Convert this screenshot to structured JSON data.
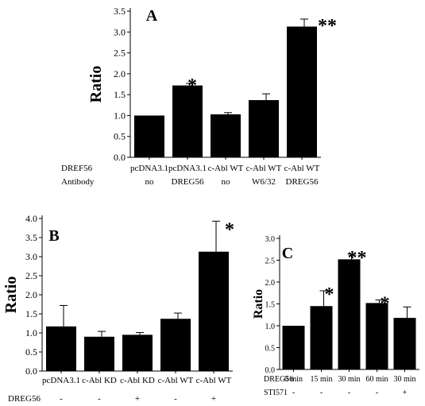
{
  "chart_data": [
    {
      "type": "bar",
      "title": "A",
      "ylabel": "Ratio",
      "ylim": [
        0,
        3.5
      ],
      "yticks": [
        "0.0",
        "0.5",
        "1.0",
        "1.5",
        "2.0",
        "2.5",
        "3.0",
        "3.5"
      ],
      "row_labels": [
        "DREF56",
        "Antibody"
      ],
      "categories": [
        [
          "pcDNA3.1",
          "no"
        ],
        [
          "pcDNA3.1",
          "DREG56"
        ],
        [
          "c-Abl WT",
          "no"
        ],
        [
          "c-Abl WT",
          "W6/32"
        ],
        [
          "c-Abl WT",
          "DREG56"
        ]
      ],
      "values": [
        1.0,
        1.72,
        1.03,
        1.37,
        3.13
      ],
      "errors": [
        0.0,
        0.05,
        0.04,
        0.15,
        0.18
      ],
      "annotations": [
        "",
        "*",
        "",
        "",
        "**"
      ]
    },
    {
      "type": "bar",
      "title": "B",
      "ylabel": "Ratio",
      "ylim": [
        0,
        4.0
      ],
      "yticks": [
        "0.0",
        "0.5",
        "1.0",
        "1.5",
        "2.0",
        "2.5",
        "3.0",
        "3.5",
        "4.0"
      ],
      "row_labels": [
        "DREG56"
      ],
      "categories": [
        [
          "pcDNA3.1",
          "-"
        ],
        [
          "c-Abl KD",
          "-"
        ],
        [
          "c-Abl KD",
          "+"
        ],
        [
          "c-Abl WT",
          "-"
        ],
        [
          "c-Abl WT",
          "+"
        ]
      ],
      "values": [
        1.17,
        0.9,
        0.95,
        1.37,
        3.13
      ],
      "errors": [
        0.55,
        0.14,
        0.06,
        0.15,
        0.8
      ],
      "annotations": [
        "",
        "",
        "",
        "",
        "*"
      ]
    },
    {
      "type": "bar",
      "title": "C",
      "ylabel": "Ratio",
      "ylim": [
        0,
        3.0
      ],
      "yticks": [
        "0.0",
        "0.5",
        "1.0",
        "1.5",
        "2.0",
        "2.5",
        "3.0"
      ],
      "row_labels": [
        "DREG56",
        "STI571"
      ],
      "categories": [
        [
          "0 min",
          "-"
        ],
        [
          "15 min",
          "-"
        ],
        [
          "30 min",
          "-"
        ],
        [
          "60 min",
          "-"
        ],
        [
          "30 min",
          "+"
        ]
      ],
      "values": [
        1.0,
        1.45,
        2.52,
        1.52,
        1.18
      ],
      "errors": [
        0.0,
        0.35,
        0.12,
        0.07,
        0.25
      ],
      "annotations": [
        "",
        "*",
        "**",
        "*",
        ""
      ]
    }
  ]
}
